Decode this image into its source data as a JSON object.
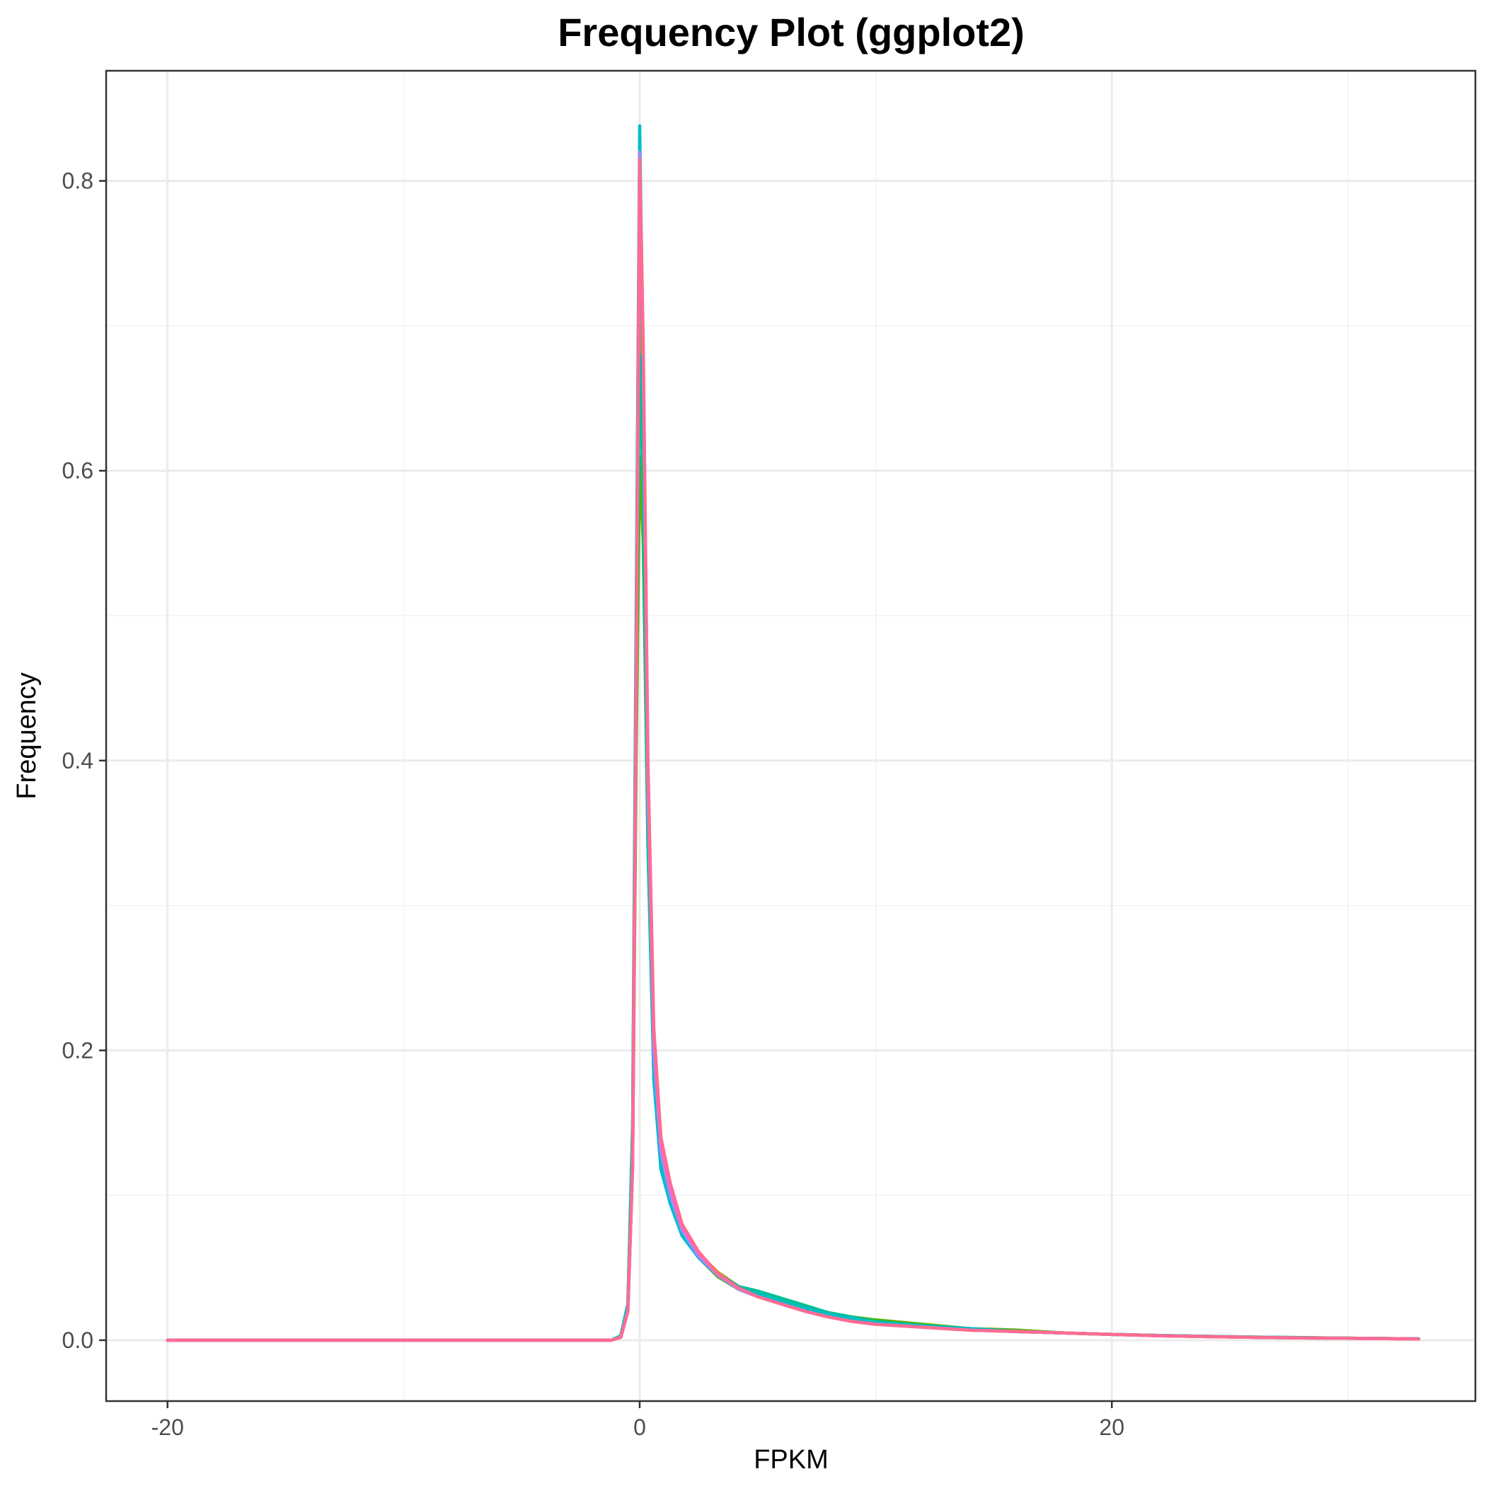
{
  "chart_data": {
    "type": "line",
    "title": "Frequency Plot (ggplot2)",
    "xlabel": "FPKM",
    "ylabel": "Frequency",
    "xlim": [
      -22.6,
      35.4
    ],
    "ylim": [
      -0.042,
      0.876
    ],
    "x_ticks": [
      -20,
      0,
      20
    ],
    "x_tick_labels": [
      "-20",
      "0",
      "20"
    ],
    "x_minor_ticks": [
      -10,
      10,
      30
    ],
    "y_ticks": [
      0.0,
      0.2,
      0.4,
      0.6,
      0.8
    ],
    "y_tick_labels": [
      "0.0",
      "0.2",
      "0.4",
      "0.6",
      "0.8"
    ],
    "y_minor_ticks": [
      0.1,
      0.3,
      0.5,
      0.7
    ],
    "grid": true,
    "legend": "none",
    "series": [
      {
        "color": "#F8766D",
        "points": [
          [
            -20,
            0
          ],
          [
            -1.2,
            0
          ],
          [
            -0.8,
            0.002
          ],
          [
            -0.5,
            0.02
          ],
          [
            -0.3,
            0.12
          ],
          [
            -0.15,
            0.42
          ],
          [
            0,
            0.75
          ],
          [
            0.15,
            0.62
          ],
          [
            0.35,
            0.36
          ],
          [
            0.6,
            0.19
          ],
          [
            0.9,
            0.12
          ],
          [
            1.3,
            0.095
          ],
          [
            1.8,
            0.072
          ],
          [
            2.5,
            0.058
          ],
          [
            3.3,
            0.045
          ],
          [
            4.2,
            0.036
          ],
          [
            5,
            0.031
          ],
          [
            6,
            0.026
          ],
          [
            7,
            0.021
          ],
          [
            8,
            0.017
          ],
          [
            9,
            0.014
          ],
          [
            10,
            0.012
          ],
          [
            12,
            0.009
          ],
          [
            14,
            0.007
          ],
          [
            16,
            0.006
          ],
          [
            18,
            0.005
          ],
          [
            20,
            0.004
          ],
          [
            22,
            0.003
          ],
          [
            24,
            0.0025
          ],
          [
            26,
            0.002
          ],
          [
            28,
            0.0016
          ],
          [
            30,
            0.0013
          ],
          [
            32,
            0.001
          ],
          [
            33,
            0.0008
          ]
        ]
      },
      {
        "color": "#C49A00",
        "points": [
          [
            -20,
            0
          ],
          [
            -1.2,
            0
          ],
          [
            -0.8,
            0.002
          ],
          [
            -0.5,
            0.022
          ],
          [
            -0.3,
            0.13
          ],
          [
            -0.15,
            0.44
          ],
          [
            0,
            0.74
          ],
          [
            0.15,
            0.61
          ],
          [
            0.35,
            0.35
          ],
          [
            0.6,
            0.19
          ],
          [
            0.9,
            0.125
          ],
          [
            1.3,
            0.098
          ],
          [
            1.8,
            0.075
          ],
          [
            2.5,
            0.06
          ],
          [
            3.3,
            0.047
          ],
          [
            4.2,
            0.037
          ],
          [
            5,
            0.032
          ],
          [
            6,
            0.027
          ],
          [
            7,
            0.022
          ],
          [
            8,
            0.018
          ],
          [
            9,
            0.015
          ],
          [
            10,
            0.013
          ],
          [
            12,
            0.01
          ],
          [
            14,
            0.008
          ],
          [
            16,
            0.006
          ],
          [
            18,
            0.005
          ],
          [
            20,
            0.004
          ],
          [
            22,
            0.0032
          ],
          [
            24,
            0.0026
          ],
          [
            26,
            0.0021
          ],
          [
            28,
            0.0017
          ],
          [
            30,
            0.0014
          ],
          [
            32,
            0.0011
          ],
          [
            33,
            0.0009
          ]
        ]
      },
      {
        "color": "#53B400",
        "points": [
          [
            -20,
            0
          ],
          [
            -1.2,
            0
          ],
          [
            -0.8,
            0.002
          ],
          [
            -0.5,
            0.021
          ],
          [
            -0.3,
            0.12
          ],
          [
            -0.15,
            0.4
          ],
          [
            0,
            0.61
          ],
          [
            0.15,
            0.55
          ],
          [
            0.35,
            0.34
          ],
          [
            0.6,
            0.19
          ],
          [
            0.9,
            0.12
          ],
          [
            1.3,
            0.094
          ],
          [
            1.8,
            0.073
          ],
          [
            2.5,
            0.057
          ],
          [
            3.3,
            0.044
          ],
          [
            4.2,
            0.035
          ],
          [
            5,
            0.032
          ],
          [
            6,
            0.028
          ],
          [
            7,
            0.023
          ],
          [
            8,
            0.019
          ],
          [
            9,
            0.016
          ],
          [
            10,
            0.014
          ],
          [
            12,
            0.011
          ],
          [
            14,
            0.008
          ],
          [
            16,
            0.007
          ],
          [
            18,
            0.005
          ],
          [
            20,
            0.004
          ],
          [
            22,
            0.0033
          ],
          [
            24,
            0.0027
          ],
          [
            26,
            0.0022
          ],
          [
            28,
            0.0018
          ],
          [
            30,
            0.0014
          ],
          [
            32,
            0.0011
          ],
          [
            33,
            0.0009
          ]
        ]
      },
      {
        "color": "#00C094",
        "points": [
          [
            -20,
            0
          ],
          [
            -1.2,
            0
          ],
          [
            -0.8,
            0.003
          ],
          [
            -0.5,
            0.025
          ],
          [
            -0.3,
            0.14
          ],
          [
            -0.15,
            0.46
          ],
          [
            0,
            0.68
          ],
          [
            0.15,
            0.58
          ],
          [
            0.35,
            0.34
          ],
          [
            0.6,
            0.18
          ],
          [
            0.9,
            0.12
          ],
          [
            1.3,
            0.096
          ],
          [
            1.8,
            0.074
          ],
          [
            2.5,
            0.058
          ],
          [
            3.3,
            0.046
          ],
          [
            4.2,
            0.037
          ],
          [
            5,
            0.034
          ],
          [
            6,
            0.029
          ],
          [
            7,
            0.024
          ],
          [
            8,
            0.019
          ],
          [
            9,
            0.016
          ],
          [
            10,
            0.013
          ],
          [
            12,
            0.01
          ],
          [
            14,
            0.008
          ],
          [
            16,
            0.006
          ],
          [
            18,
            0.005
          ],
          [
            20,
            0.004
          ],
          [
            22,
            0.0033
          ],
          [
            24,
            0.0027
          ],
          [
            26,
            0.0022
          ],
          [
            28,
            0.0018
          ],
          [
            30,
            0.0014
          ],
          [
            32,
            0.0011
          ],
          [
            33,
            0.0009
          ]
        ]
      },
      {
        "color": "#00B6EB",
        "points": [
          [
            -20,
            0
          ],
          [
            -1.2,
            0
          ],
          [
            -0.8,
            0.003
          ],
          [
            -0.5,
            0.024
          ],
          [
            -0.3,
            0.14
          ],
          [
            -0.15,
            0.48
          ],
          [
            0,
            0.82
          ],
          [
            0.15,
            0.66
          ],
          [
            0.35,
            0.36
          ],
          [
            0.6,
            0.18
          ],
          [
            0.9,
            0.118
          ],
          [
            1.3,
            0.094
          ],
          [
            1.8,
            0.072
          ],
          [
            2.5,
            0.057
          ],
          [
            3.3,
            0.045
          ],
          [
            4.2,
            0.036
          ],
          [
            5,
            0.032
          ],
          [
            6,
            0.026
          ],
          [
            7,
            0.021
          ],
          [
            8,
            0.017
          ],
          [
            9,
            0.014
          ],
          [
            10,
            0.012
          ],
          [
            12,
            0.009
          ],
          [
            14,
            0.008
          ],
          [
            16,
            0.006
          ],
          [
            18,
            0.005
          ],
          [
            20,
            0.004
          ],
          [
            22,
            0.0032
          ],
          [
            24,
            0.0026
          ],
          [
            26,
            0.0021
          ],
          [
            28,
            0.0017
          ],
          [
            30,
            0.0014
          ],
          [
            32,
            0.0011
          ],
          [
            33,
            0.0009
          ]
        ]
      },
      {
        "color": "#00BFC4",
        "points": [
          [
            -20,
            0
          ],
          [
            -1.2,
            0
          ],
          [
            -0.8,
            0.003
          ],
          [
            -0.5,
            0.025
          ],
          [
            -0.3,
            0.15
          ],
          [
            -0.15,
            0.5
          ],
          [
            0,
            0.838
          ],
          [
            0.15,
            0.67
          ],
          [
            0.35,
            0.37
          ],
          [
            0.6,
            0.19
          ],
          [
            0.9,
            0.12
          ],
          [
            1.3,
            0.095
          ],
          [
            1.8,
            0.073
          ],
          [
            2.5,
            0.058
          ],
          [
            3.3,
            0.045
          ],
          [
            4.2,
            0.036
          ],
          [
            5,
            0.032
          ],
          [
            6,
            0.027
          ],
          [
            7,
            0.022
          ],
          [
            8,
            0.018
          ],
          [
            9,
            0.015
          ],
          [
            10,
            0.012
          ],
          [
            12,
            0.01
          ],
          [
            14,
            0.008
          ],
          [
            16,
            0.006
          ],
          [
            18,
            0.005
          ],
          [
            20,
            0.004
          ],
          [
            22,
            0.0032
          ],
          [
            24,
            0.0026
          ],
          [
            26,
            0.0021
          ],
          [
            28,
            0.0017
          ],
          [
            30,
            0.0014
          ],
          [
            32,
            0.0011
          ],
          [
            33,
            0.0009
          ]
        ]
      },
      {
        "color": "#A58AFF",
        "points": [
          [
            -20,
            0
          ],
          [
            -1.2,
            0
          ],
          [
            -0.8,
            0.002
          ],
          [
            -0.5,
            0.02
          ],
          [
            -0.3,
            0.12
          ],
          [
            -0.15,
            0.45
          ],
          [
            0,
            0.82
          ],
          [
            0.15,
            0.68
          ],
          [
            0.35,
            0.38
          ],
          [
            0.6,
            0.2
          ],
          [
            0.9,
            0.13
          ],
          [
            1.3,
            0.1
          ],
          [
            1.8,
            0.076
          ],
          [
            2.5,
            0.058
          ],
          [
            3.3,
            0.045
          ],
          [
            4.2,
            0.035
          ],
          [
            5,
            0.03
          ],
          [
            6,
            0.025
          ],
          [
            7,
            0.02
          ],
          [
            8,
            0.016
          ],
          [
            9,
            0.013
          ],
          [
            10,
            0.011
          ],
          [
            12,
            0.009
          ],
          [
            14,
            0.007
          ],
          [
            16,
            0.006
          ],
          [
            18,
            0.005
          ],
          [
            20,
            0.004
          ],
          [
            22,
            0.0031
          ],
          [
            24,
            0.0025
          ],
          [
            26,
            0.002
          ],
          [
            28,
            0.0016
          ],
          [
            30,
            0.0013
          ],
          [
            32,
            0.001
          ],
          [
            33,
            0.0008
          ]
        ]
      },
      {
        "color": "#FB61D7",
        "points": [
          [
            -20,
            0
          ],
          [
            -1.2,
            0
          ],
          [
            -0.8,
            0.002
          ],
          [
            -0.5,
            0.02
          ],
          [
            -0.3,
            0.12
          ],
          [
            -0.15,
            0.45
          ],
          [
            0,
            0.8
          ],
          [
            0.15,
            0.68
          ],
          [
            0.35,
            0.39
          ],
          [
            0.6,
            0.21
          ],
          [
            0.9,
            0.135
          ],
          [
            1.3,
            0.105
          ],
          [
            1.8,
            0.078
          ],
          [
            2.5,
            0.06
          ],
          [
            3.3,
            0.046
          ],
          [
            4.2,
            0.036
          ],
          [
            5,
            0.03
          ],
          [
            6,
            0.025
          ],
          [
            7,
            0.02
          ],
          [
            8,
            0.016
          ],
          [
            9,
            0.013
          ],
          [
            10,
            0.011
          ],
          [
            12,
            0.009
          ],
          [
            14,
            0.007
          ],
          [
            16,
            0.006
          ],
          [
            18,
            0.005
          ],
          [
            20,
            0.004
          ],
          [
            22,
            0.0031
          ],
          [
            24,
            0.0025
          ],
          [
            26,
            0.002
          ],
          [
            28,
            0.0016
          ],
          [
            30,
            0.0013
          ],
          [
            32,
            0.001
          ],
          [
            33,
            0.0008
          ]
        ]
      },
      {
        "color": "#FF6C91",
        "points": [
          [
            -20,
            0
          ],
          [
            -1.2,
            0
          ],
          [
            -0.8,
            0.002
          ],
          [
            -0.5,
            0.02
          ],
          [
            -0.3,
            0.12
          ],
          [
            -0.15,
            0.44
          ],
          [
            0,
            0.815
          ],
          [
            0.15,
            0.69
          ],
          [
            0.35,
            0.4
          ],
          [
            0.6,
            0.215
          ],
          [
            0.9,
            0.14
          ],
          [
            1.3,
            0.108
          ],
          [
            1.8,
            0.08
          ],
          [
            2.5,
            0.061
          ],
          [
            3.3,
            0.046
          ],
          [
            4.2,
            0.036
          ],
          [
            5,
            0.03
          ],
          [
            6,
            0.025
          ],
          [
            7,
            0.02
          ],
          [
            8,
            0.016
          ],
          [
            9,
            0.013
          ],
          [
            10,
            0.011
          ],
          [
            12,
            0.009
          ],
          [
            14,
            0.007
          ],
          [
            16,
            0.006
          ],
          [
            18,
            0.005
          ],
          [
            20,
            0.004
          ],
          [
            22,
            0.0031
          ],
          [
            24,
            0.0025
          ],
          [
            26,
            0.002
          ],
          [
            28,
            0.0016
          ],
          [
            30,
            0.0013
          ],
          [
            32,
            0.001
          ],
          [
            33,
            0.0008
          ]
        ]
      }
    ]
  }
}
